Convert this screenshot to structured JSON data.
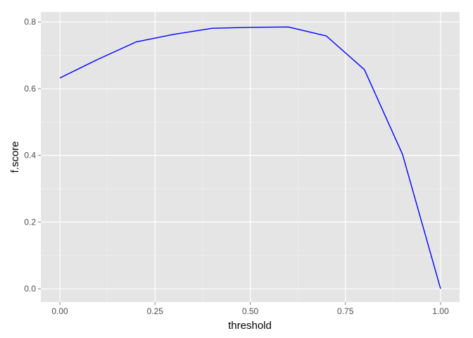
{
  "chart_data": {
    "type": "line",
    "xlabel": "threshold",
    "ylabel": "f.score",
    "x": [
      0.0,
      0.1,
      0.2,
      0.3,
      0.4,
      0.5,
      0.6,
      0.7,
      0.8,
      0.9,
      1.0
    ],
    "series": [
      {
        "values": [
          0.632,
          0.688,
          0.74,
          0.763,
          0.781,
          0.784,
          0.785,
          0.758,
          0.657,
          0.403,
          0.0
        ],
        "color": "#0000ff"
      }
    ],
    "xlim": [
      -0.05,
      1.05
    ],
    "ylim": [
      -0.04,
      0.83
    ],
    "x_ticks": [
      {
        "value": 0.0,
        "label": "0.00"
      },
      {
        "value": 0.25,
        "label": "0.25"
      },
      {
        "value": 0.5,
        "label": "0.50"
      },
      {
        "value": 0.75,
        "label": "0.75"
      },
      {
        "value": 1.0,
        "label": "1.00"
      }
    ],
    "y_ticks": [
      {
        "value": 0.0,
        "label": "0.0"
      },
      {
        "value": 0.2,
        "label": "0.2"
      },
      {
        "value": 0.4,
        "label": "0.4"
      },
      {
        "value": 0.6,
        "label": "0.6"
      },
      {
        "value": 0.8,
        "label": "0.8"
      }
    ],
    "x_minor": [
      0.125,
      0.375,
      0.625,
      0.875
    ],
    "y_minor": [
      0.1,
      0.3,
      0.5,
      0.7
    ],
    "grid": true,
    "panel_background": "#e5e5e5",
    "grid_color": "#ffffff"
  }
}
